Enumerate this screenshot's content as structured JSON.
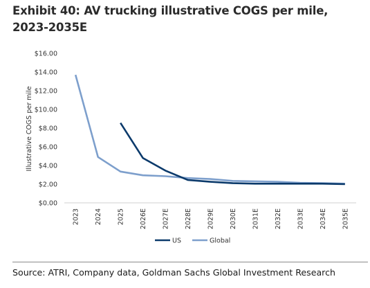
{
  "title": "Exhibit 40: AV trucking illustrative COGS per mile, 2023-2035E",
  "source": "Source: ATRI, Company data, Goldman Sachs Global Investment Research",
  "chart_data": {
    "type": "line",
    "x": [
      "2023",
      "2024",
      "2025",
      "2026E",
      "2027E",
      "2028E",
      "2029E",
      "2030E",
      "2031E",
      "2032E",
      "2033E",
      "2034E",
      "2035E"
    ],
    "ylabel": "Illustrative COGS per mile",
    "ylim": [
      0,
      16
    ],
    "yticks": [
      "$0.00",
      "$2.00",
      "$4.00",
      "$6.00",
      "$8.00",
      "$10.00",
      "$12.00",
      "$14.00",
      "$16.00"
    ],
    "grid": false,
    "legend": "bottom",
    "series": [
      {
        "name": "US",
        "color": "#0b3a6b",
        "values": [
          null,
          null,
          8.55,
          4.8,
          3.45,
          2.45,
          2.25,
          2.1,
          2.05,
          2.05,
          2.05,
          2.05,
          2.0
        ]
      },
      {
        "name": "Global",
        "color": "#7d9fcc",
        "values": [
          13.7,
          4.9,
          3.35,
          2.95,
          2.85,
          2.65,
          2.55,
          2.35,
          2.3,
          2.25,
          2.15,
          2.1,
          2.05
        ]
      }
    ]
  }
}
